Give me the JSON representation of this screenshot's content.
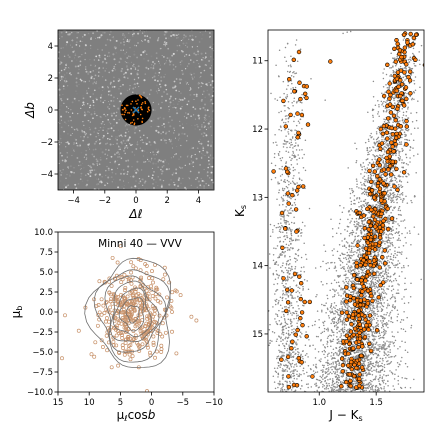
{
  "figure": {
    "colors": {
      "background_points": "#8c8c8c",
      "panel_background": "#7f7f7f",
      "member_face": "#ff7f0e",
      "member_edge": "#000000",
      "circle_fill": "#000000",
      "center_marker": "#1f77b4",
      "pm_points": "#c8926a",
      "contour": "#6e6e6e"
    }
  },
  "chart_data": [
    {
      "id": "sky",
      "type": "scatter",
      "xlabel": "Δℓ",
      "ylabel": "Δb",
      "xlim": [
        -5,
        5
      ],
      "ylim": [
        -5,
        5
      ],
      "xticks": [
        -4,
        -2,
        0,
        2,
        4
      ],
      "yticks": [
        -4,
        -2,
        0,
        2,
        4
      ],
      "xtick_labels": [
        "−4",
        "−2",
        "0",
        "2",
        "4"
      ],
      "ytick_labels": [
        "−4",
        "−2",
        "0",
        "2",
        "4"
      ],
      "field": {
        "description": "dense field stars filling the panel",
        "density": "uniform"
      },
      "cluster_circle": {
        "center": [
          0,
          0
        ],
        "radius": 1.0
      },
      "cluster_center": [
        0,
        0
      ],
      "grid": false
    },
    {
      "id": "proper_motion",
      "type": "scatter",
      "title": "Minni 40  —  VVV",
      "xlabel": "μℓcosb",
      "ylabel": "μb",
      "xlim": [
        15,
        -10
      ],
      "ylim": [
        -10,
        10
      ],
      "xticks": [
        15,
        10,
        5,
        0,
        -5,
        -10
      ],
      "yticks": [
        -10.0,
        -7.5,
        -5.0,
        -2.5,
        0.0,
        2.5,
        5.0,
        7.5,
        10.0
      ],
      "xtick_labels": [
        "15",
        "10",
        "5",
        "0",
        "−5",
        "−10"
      ],
      "ytick_labels": [
        "−10.0",
        "−7.5",
        "−5.0",
        "−2.5",
        "0.0",
        "2.5",
        "5.0",
        "7.5",
        "10.0"
      ],
      "distribution": {
        "center": [
          3.0,
          -0.2
        ],
        "sigma": [
          2.6,
          2.6
        ]
      },
      "contour_levels": [
        1.0,
        1.9,
        2.8,
        3.6,
        4.5,
        5.5,
        6.5
      ],
      "grid": false
    },
    {
      "id": "cmd",
      "type": "scatter",
      "xlabel": "J − Ks",
      "ylabel": "Ks",
      "xlim": [
        0.55,
        1.92
      ],
      "ylim": [
        15.85,
        10.55
      ],
      "xticks": [
        1.0,
        1.5
      ],
      "yticks": [
        11,
        12,
        13,
        14,
        15
      ],
      "xtick_labels": [
        "1.0",
        "1.5"
      ],
      "ytick_labels": [
        "11",
        "12",
        "13",
        "14",
        "15"
      ],
      "sequences": [
        {
          "name": "red giant branch",
          "points": [
            [
              1.78,
              10.6
            ],
            [
              1.66,
              11.8
            ],
            [
              1.55,
              12.8
            ],
            [
              1.46,
              13.6
            ],
            [
              1.38,
              14.4
            ],
            [
              1.32,
              15.2
            ],
            [
              1.3,
              15.85
            ]
          ]
        },
        {
          "name": "foreground disc",
          "points": [
            [
              0.78,
              10.6
            ],
            [
              0.74,
              12.0
            ],
            [
              0.72,
              13.4
            ],
            [
              0.72,
              14.6
            ],
            [
              0.74,
              15.85
            ]
          ]
        }
      ],
      "grid": false
    }
  ]
}
